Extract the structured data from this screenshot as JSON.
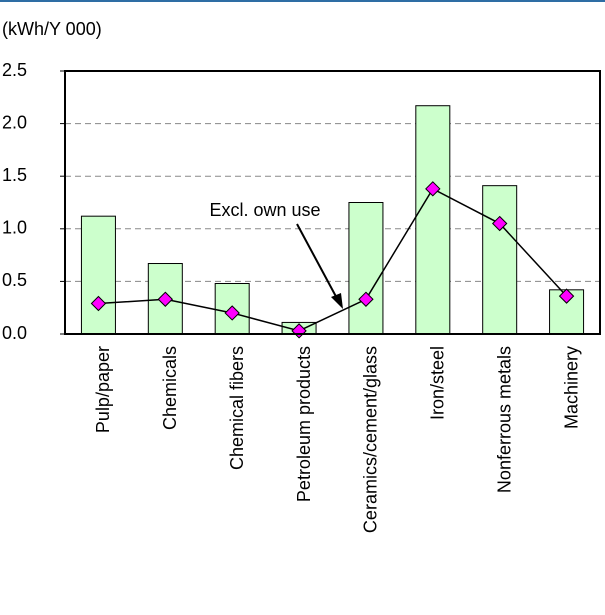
{
  "chart_data": {
    "type": "bar",
    "y_label": "(kWh/Y 000)",
    "annotation": "Excl. own use",
    "categories": [
      "Pulp/paper",
      "Chemicals",
      "Chemical fibers",
      "Petroleum products",
      "Ceramics/cement/glass",
      "Iron/steel",
      "Nonferrous metals",
      "Machinery"
    ],
    "series": [
      {
        "type": "bar",
        "color": "#ccffcc",
        "values": [
          1.12,
          0.67,
          0.48,
          0.11,
          1.25,
          2.17,
          1.41,
          0.42
        ]
      },
      {
        "type": "line",
        "color": "#ff00ff",
        "values": [
          0.29,
          0.33,
          0.2,
          0.03,
          0.33,
          1.38,
          1.05,
          0.36
        ]
      }
    ],
    "ylim": [
      0,
      2.5
    ],
    "yticks": [
      {
        "value": 0,
        "label": "0.0"
      },
      0.5,
      {
        "value": 1,
        "label": "1.0"
      },
      1.5,
      {
        "value": 2,
        "label": "2.0"
      },
      2.5
    ],
    "grid": true
  }
}
